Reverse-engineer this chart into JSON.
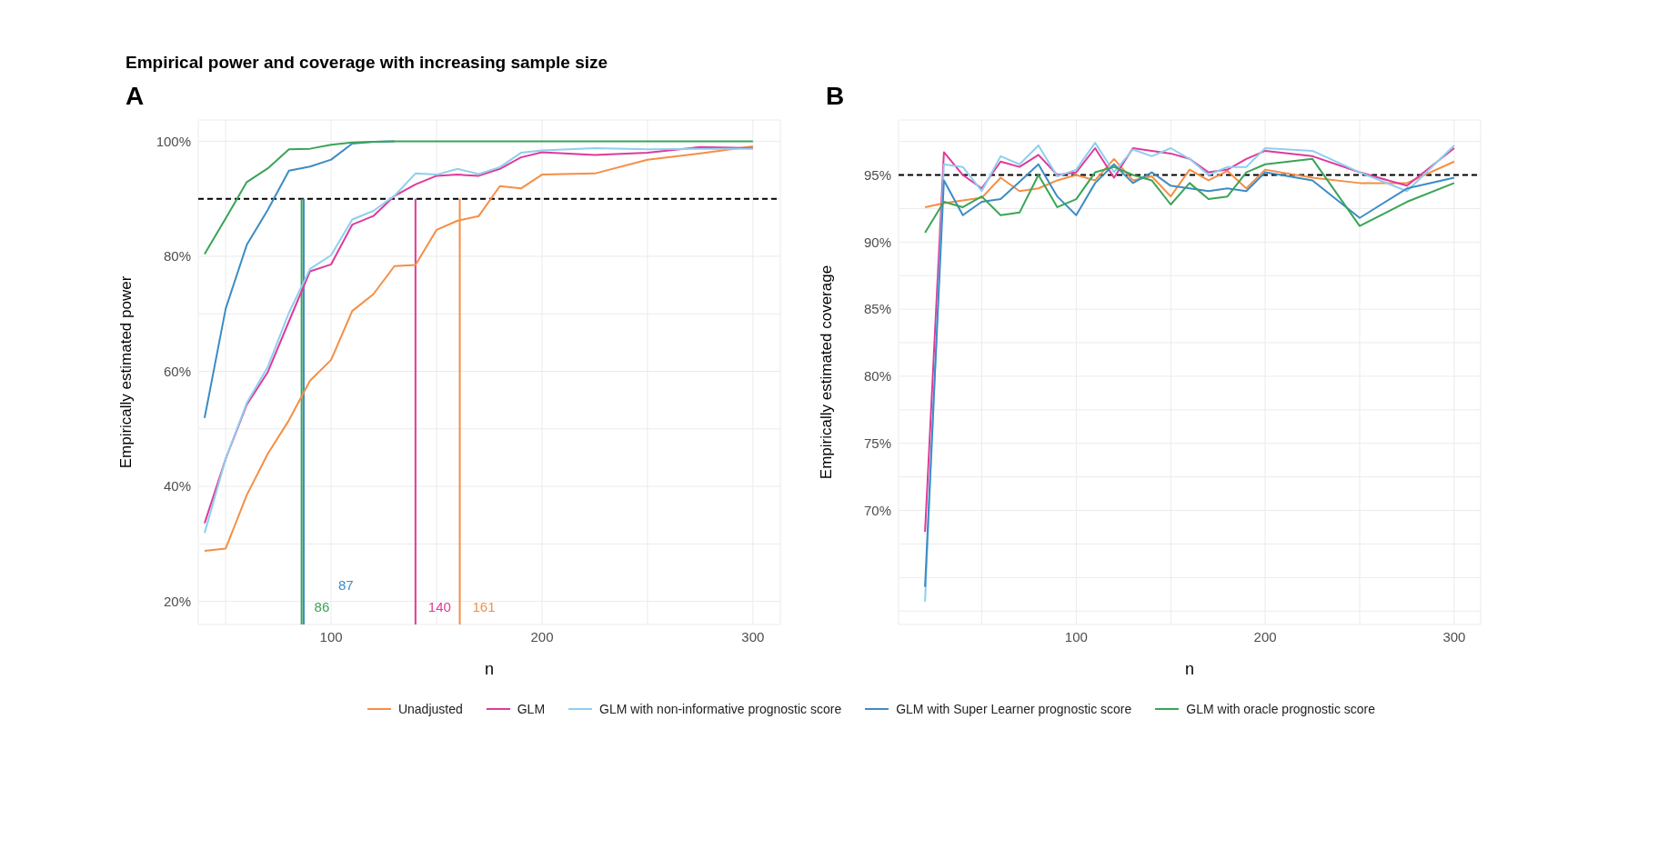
{
  "chart_data": [
    {
      "type": "line",
      "title": "Empirical power and coverage with increasing sample size",
      "subtitle": "A",
      "xlabel": "n",
      "ylabel": "Empirically estimated power",
      "marker": "none",
      "line_style": "solid",
      "grid": true,
      "legend": "bottom",
      "x": [
        40,
        50,
        60,
        70,
        80,
        90,
        100,
        110,
        120,
        130,
        140,
        150,
        160,
        170,
        180,
        190,
        200,
        225,
        250,
        275,
        300
      ],
      "xlim": [
        37,
        313
      ],
      "xticks": [
        {
          "value": 50,
          "label": null
        },
        100,
        {
          "value": 150,
          "label": null
        },
        200,
        {
          "value": 250,
          "label": null
        },
        300
      ],
      "ylim": [
        16,
        103.7
      ],
      "yticks": [
        {
          "value": 20,
          "label": "20%"
        },
        {
          "value": 30,
          "label": null
        },
        {
          "value": 40,
          "label": "40%"
        },
        {
          "value": 50,
          "label": null
        },
        {
          "value": 60,
          "label": "60%"
        },
        {
          "value": 70,
          "label": null
        },
        {
          "value": 80,
          "label": "80%"
        },
        {
          "value": 90,
          "label": null
        },
        {
          "value": 100,
          "label": "100%"
        }
      ],
      "series": [
        {
          "name": "Unadjusted",
          "color": "#f58e45",
          "values": [
            28.8,
            29.2,
            38.5,
            45.7,
            51.5,
            58.4,
            62.0,
            70.5,
            73.4,
            78.3,
            78.5,
            84.6,
            86.2,
            87.0,
            92.2,
            91.8,
            94.2,
            94.4,
            96.8,
            97.9,
            99.1
          ]
        },
        {
          "name": "GLM",
          "color": "#e0399a",
          "values": [
            33.6,
            44.8,
            54.2,
            59.9,
            68.7,
            77.4,
            78.6,
            85.5,
            87.0,
            90.5,
            92.5,
            94.0,
            94.2,
            94.0,
            95.2,
            97.2,
            98.1,
            97.6,
            98.0,
            99.0,
            98.8
          ]
        },
        {
          "name": "GLM with non-informative prognostic score",
          "color": "#8ecfef",
          "values": [
            31.9,
            44.8,
            54.5,
            60.8,
            70.2,
            77.8,
            80.2,
            86.4,
            87.9,
            90.5,
            94.4,
            94.2,
            95.2,
            94.3,
            95.5,
            98.0,
            98.4,
            98.8,
            98.6,
            98.7,
            98.7
          ]
        },
        {
          "name": "GLM with Super Learner prognostic score",
          "color": "#3d8cc4",
          "values": [
            51.9,
            70.9,
            82.0,
            88.1,
            94.9,
            95.6,
            96.8,
            99.6,
            99.9,
            100,
            null,
            null,
            null,
            null,
            null,
            null,
            null,
            null,
            null,
            null,
            null
          ]
        },
        {
          "name": "GLM with oracle prognostic score",
          "color": "#3aa457",
          "values": [
            80.4,
            86.6,
            92.9,
            95.3,
            98.6,
            98.7,
            99.4,
            99.8,
            99.9,
            100,
            100,
            100,
            100,
            100,
            100,
            100,
            100,
            100,
            100,
            100,
            100
          ]
        }
      ],
      "ref_lines": [
        {
          "axis": "y",
          "value": 90,
          "color": "#000000",
          "line_style": "dashed"
        },
        {
          "axis": "x",
          "value": 86,
          "label": "86",
          "color": "#3aa457"
        },
        {
          "axis": "x",
          "value": 87,
          "label": "87",
          "color": "#3d8cc4"
        },
        {
          "axis": "x",
          "value": 140,
          "label": "140",
          "color": "#e0399a"
        },
        {
          "axis": "x",
          "value": 161,
          "label": "161",
          "color": "#f58e45"
        }
      ]
    },
    {
      "type": "line",
      "title": "B",
      "xlabel": "n",
      "ylabel": "Empirically estimated coverage",
      "marker": "none",
      "line_style": "solid",
      "grid": true,
      "x": [
        20,
        30,
        40,
        50,
        60,
        70,
        80,
        90,
        100,
        110,
        120,
        130,
        140,
        150,
        160,
        170,
        180,
        190,
        200,
        225,
        250,
        275,
        300
      ],
      "xlim": [
        6,
        314
      ],
      "xticks": [
        {
          "value": 50,
          "label": null
        },
        100,
        {
          "value": 150,
          "label": null
        },
        200,
        {
          "value": 250,
          "label": null
        },
        300
      ],
      "ylim": [
        61.5,
        99.1
      ],
      "yticks": [
        {
          "value": 62.5,
          "label": null
        },
        {
          "value": 65,
          "label": null
        },
        {
          "value": 67.5,
          "label": null
        },
        {
          "value": 70,
          "label": "70%"
        },
        {
          "value": 72.5,
          "label": null
        },
        {
          "value": 75,
          "label": "75%"
        },
        {
          "value": 77.5,
          "label": null
        },
        {
          "value": 80,
          "label": "80%"
        },
        {
          "value": 82.5,
          "label": null
        },
        {
          "value": 85,
          "label": "85%"
        },
        {
          "value": 87.5,
          "label": null
        },
        {
          "value": 90,
          "label": "90%"
        },
        {
          "value": 92.5,
          "label": null
        },
        {
          "value": 95,
          "label": "95%"
        },
        {
          "value": 97.5,
          "label": null
        }
      ],
      "series": [
        {
          "color": "#f58e45",
          "values": [
            92.6,
            92.9,
            93.1,
            93.3,
            94.8,
            93.8,
            94.0,
            94.6,
            95.0,
            94.6,
            96.2,
            94.6,
            94.9,
            93.4,
            95.4,
            94.6,
            95.3,
            94.0,
            95.4,
            94.8,
            94.4,
            94.4,
            96.0
          ]
        },
        {
          "color": "#e0399a",
          "values": [
            68.4,
            96.7,
            95.0,
            94.0,
            96.0,
            95.6,
            96.5,
            95.0,
            95.2,
            97.0,
            94.8,
            97.0,
            96.8,
            96.6,
            96.2,
            95.2,
            95.4,
            96.2,
            96.8,
            96.4,
            95.2,
            94.2,
            97.0
          ]
        },
        {
          "color": "#8ecfef",
          "values": [
            63.2,
            95.8,
            95.6,
            93.8,
            96.4,
            95.8,
            97.2,
            94.9,
            95.4,
            97.4,
            95.2,
            96.9,
            96.4,
            97.0,
            96.2,
            95.0,
            95.6,
            95.6,
            97.0,
            96.8,
            95.2,
            93.8,
            97.2
          ]
        },
        {
          "color": "#3d8cc4",
          "values": [
            64.3,
            94.6,
            92.0,
            93.0,
            93.2,
            94.5,
            95.8,
            93.4,
            92.0,
            94.4,
            95.8,
            94.4,
            95.2,
            94.2,
            94.0,
            93.8,
            94.0,
            93.8,
            95.2,
            94.6,
            91.8,
            94.0,
            94.8
          ]
        },
        {
          "color": "#3aa457",
          "values": [
            90.7,
            93.0,
            92.6,
            93.4,
            92.0,
            92.2,
            95.0,
            92.6,
            93.2,
            95.2,
            95.6,
            95.0,
            94.6,
            92.8,
            94.4,
            93.2,
            93.4,
            95.2,
            95.8,
            96.2,
            91.2,
            93.0,
            94.4
          ]
        }
      ],
      "ref_lines": [
        {
          "axis": "y",
          "value": 95,
          "color": "#000000",
          "line_style": "dashed"
        }
      ]
    }
  ]
}
